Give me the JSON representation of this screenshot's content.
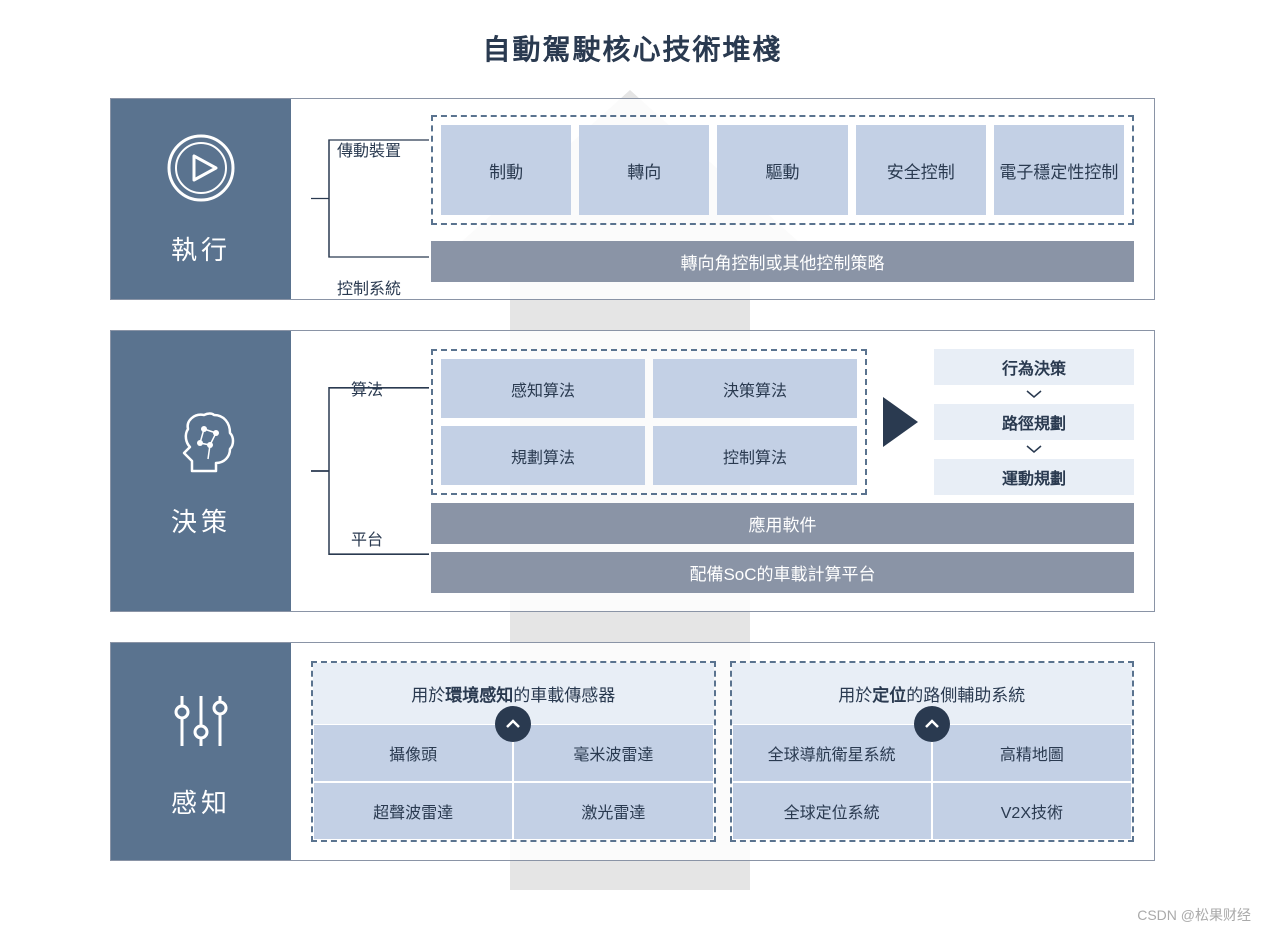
{
  "title": "自動駕駛核心技術堆棧",
  "colors": {
    "panel_bg": "#5a738f",
    "box_blue": "#c3d0e5",
    "box_gray": "#8a94a6",
    "box_light": "#e8eef6",
    "dark": "#2a3a50",
    "border": "#8a94a6",
    "arrow_bg": "#e5e5e5"
  },
  "layers": {
    "execute": {
      "name": "執行",
      "rows": {
        "transmission": {
          "label": "傳動裝置",
          "boxes": [
            "制動",
            "轉向",
            "驅動",
            "安全控制",
            "電子穩定性控制"
          ]
        },
        "control": {
          "label": "控制系統",
          "bar": "轉向角控制或其他控制策略"
        }
      }
    },
    "decision": {
      "name": "決策",
      "rows": {
        "algo": {
          "label": "算法",
          "grid": [
            "感知算法",
            "決策算法",
            "規劃算法",
            "控制算法"
          ],
          "plan": [
            "行為決策",
            "路徑規劃",
            "運動規劃"
          ]
        },
        "platform": {
          "label": "平台",
          "bars": [
            "應用軟件",
            "配備SoC的車載計算平台"
          ]
        }
      }
    },
    "perception": {
      "name": "感知",
      "groups": [
        {
          "header_pre": "用於",
          "header_bold": "環境感知",
          "header_post": "的車載傳感器",
          "cells": [
            "攝像頭",
            "毫米波雷達",
            "超聲波雷達",
            "激光雷達"
          ]
        },
        {
          "header_pre": "用於",
          "header_bold": "定位",
          "header_post": "的路側輔助系統",
          "cells": [
            "全球導航衛星系統",
            "高精地圖",
            "全球定位系統",
            "V2X技術"
          ]
        }
      ]
    }
  },
  "watermark": "CSDN @松果财经"
}
